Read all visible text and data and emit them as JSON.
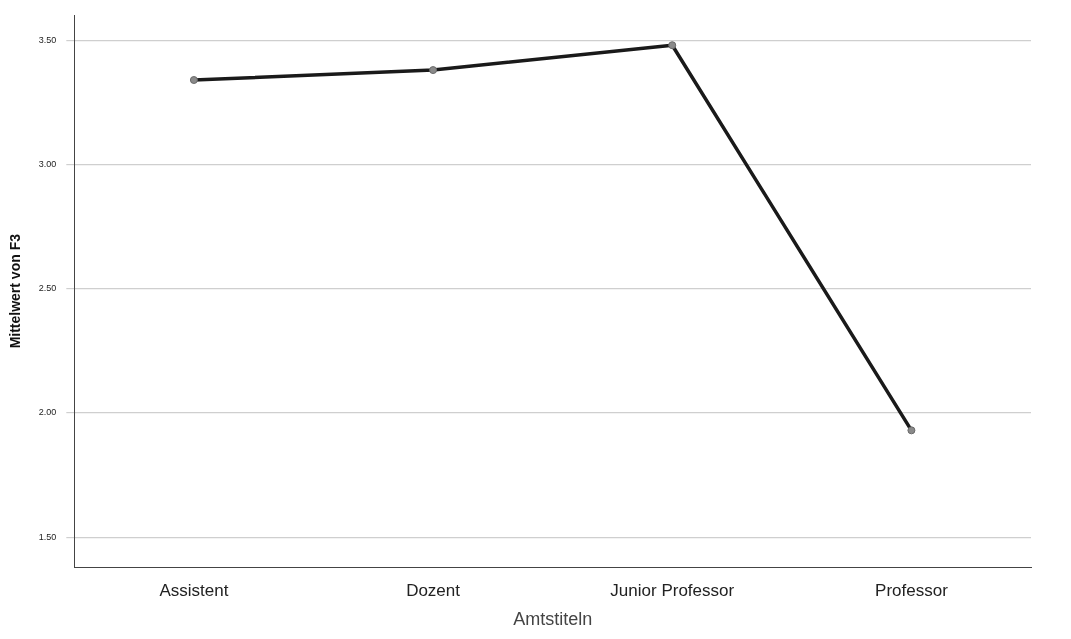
{
  "chart_data": {
    "type": "line",
    "xlabel": "Amtstiteln",
    "ylabel": "Mittelwert von F3",
    "categories": [
      "Assistent",
      "Dozent",
      "Junior Professor",
      "Professor"
    ],
    "series": [
      {
        "color": "#1a1a1a",
        "values": [
          3.34,
          3.38,
          3.48,
          1.93
        ]
      }
    ],
    "ylim": [
      1.38,
      3.6
    ],
    "yticks": [
      {
        "value": 1.5,
        "label": "1.50"
      },
      {
        "value": 2,
        "label": "2.00"
      },
      {
        "value": 2.5,
        "label": "2.50"
      },
      {
        "value": 3,
        "label": "3.00"
      },
      {
        "value": 3.5,
        "label": "3.50"
      }
    ],
    "grid": "y",
    "marker": "circle",
    "line_style": "solid"
  }
}
